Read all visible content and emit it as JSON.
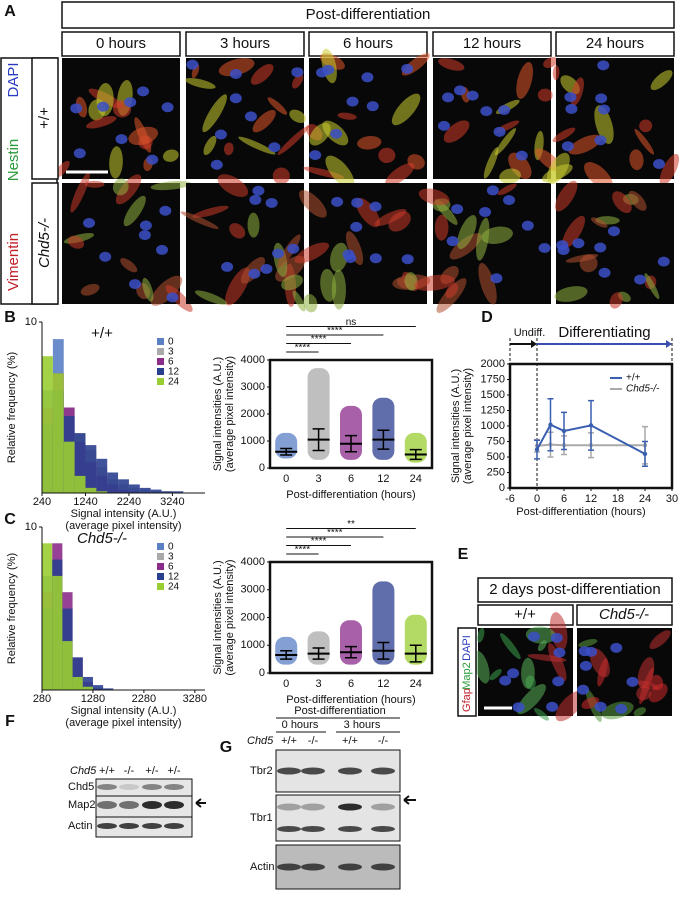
{
  "panel_a": {
    "label": "A",
    "header": "Post-differentiation",
    "times": [
      "0 hours",
      "3 hours",
      "6 hours",
      "12 hours",
      "24 hours"
    ],
    "stains": [
      "DAPI",
      "Nestin",
      "Vimentin"
    ],
    "genotypes": [
      "+/+",
      "Chd5-/-"
    ]
  },
  "chart_data": [
    {
      "type": "histogram",
      "panel": "B",
      "title": "+/+",
      "ylabel": "Relative frequency (%)",
      "xlabel": [
        "Signal intensity (A.U.)",
        "(average pixel intensity)"
      ],
      "bins": [
        240,
        490,
        740,
        990,
        1240,
        1490,
        1740,
        1990,
        2240,
        2490,
        2740,
        2990,
        3240,
        3490,
        3740,
        3990
      ],
      "xlim": [
        240,
        3990
      ],
      "xticks": [
        240,
        1240,
        2240,
        3240
      ],
      "ylim": [
        0,
        10
      ],
      "yticks": [
        10
      ],
      "series": [
        {
          "name": "0",
          "color": "#5b7fc4",
          "values": [
            6,
            9,
            4,
            2,
            1,
            0.4,
            0.2,
            0.1,
            0,
            0,
            0,
            0,
            0,
            0,
            0
          ]
        },
        {
          "name": "3",
          "color": "#a9a9a9",
          "values": [
            4,
            6,
            5,
            3.5,
            2.5,
            1.5,
            0.8,
            0.5,
            0.3,
            0.2,
            0.1,
            0.1,
            0,
            0,
            0
          ]
        },
        {
          "name": "6",
          "color": "#8b2c8b",
          "values": [
            5,
            7,
            5,
            3,
            1.8,
            1,
            0.5,
            0.2,
            0.1,
            0,
            0,
            0,
            0,
            0,
            0
          ]
        },
        {
          "name": "12",
          "color": "#2b3f8f",
          "values": [
            4,
            6,
            4.5,
            3.5,
            2.8,
            2,
            1.2,
            0.8,
            0.5,
            0.3,
            0.2,
            0.1,
            0.1,
            0,
            0
          ]
        },
        {
          "name": "24",
          "color": "#9acd32",
          "values": [
            8,
            7,
            3,
            1,
            0.3,
            0.1,
            0,
            0,
            0,
            0,
            0,
            0,
            0,
            0,
            0
          ]
        }
      ]
    },
    {
      "type": "dotplot",
      "ylabel": [
        "Signal intensities (A.U.)",
        "(average pixel intensity)"
      ],
      "xlabel": "Post-differentiation (hours)",
      "categories": [
        "0",
        "3",
        "6",
        "12",
        "24"
      ],
      "colors": [
        "#5b7fc4",
        "#a9a9a9",
        "#8b2c8b",
        "#2b3f8f",
        "#9acd32"
      ],
      "means": [
        600,
        1050,
        900,
        1050,
        500
      ],
      "errors": [
        120,
        400,
        300,
        350,
        180
      ],
      "mins": [
        350,
        300,
        300,
        300,
        200
      ],
      "maxs": [
        1300,
        3700,
        2300,
        2600,
        1300
      ],
      "ylim": [
        0,
        4000
      ],
      "yticks": [
        0,
        1000,
        2000,
        3000,
        4000
      ],
      "annotations": [
        "****",
        "****",
        "****",
        "ns"
      ]
    },
    {
      "type": "histogram",
      "panel": "C",
      "title": "Chd5-/-",
      "ylabel": "Relative frequency (%)",
      "xlabel": [
        "Signal intensity (A.U.)",
        "(average pixel intensity)"
      ],
      "bins": [
        280,
        480,
        680,
        880,
        1080,
        1280,
        1480,
        1680,
        1880,
        2080,
        2280,
        2480,
        2680,
        2880,
        3080,
        3280,
        3480
      ],
      "xlim": [
        280,
        3480
      ],
      "xticks": [
        280,
        1280,
        2280,
        3280
      ],
      "ylim": [
        0,
        10
      ],
      "yticks": [
        10
      ],
      "series": [
        {
          "name": "0",
          "color": "#5b7fc4",
          "values": [
            7,
            8,
            3,
            0.8,
            0.2,
            0,
            0,
            0,
            0,
            0,
            0,
            0,
            0,
            0,
            0,
            0
          ]
        },
        {
          "name": "3",
          "color": "#a9a9a9",
          "values": [
            5,
            8,
            5,
            1.5,
            0.4,
            0.1,
            0,
            0,
            0,
            0,
            0,
            0,
            0,
            0,
            0,
            0
          ]
        },
        {
          "name": "6",
          "color": "#8b2c8b",
          "values": [
            6,
            9,
            6,
            2,
            0.5,
            0.1,
            0,
            0,
            0,
            0,
            0,
            0,
            0,
            0,
            0,
            0
          ]
        },
        {
          "name": "12",
          "color": "#2b3f8f",
          "values": [
            5,
            8,
            5,
            2,
            0.8,
            0.3,
            0.1,
            0,
            0,
            0,
            0,
            0,
            0,
            0,
            0,
            0
          ]
        },
        {
          "name": "24",
          "color": "#9acd32",
          "values": [
            9,
            7,
            3,
            0.8,
            0.2,
            0,
            0,
            0,
            0,
            0,
            0,
            0,
            0,
            0,
            0,
            0
          ]
        }
      ]
    },
    {
      "type": "dotplot",
      "ylabel": [
        "Signal intensities (A.U.)",
        "(average pixel intensity)"
      ],
      "xlabel": "Post-differentiation (hours)",
      "categories": [
        "0",
        "3",
        "6",
        "12",
        "24"
      ],
      "colors": [
        "#5b7fc4",
        "#a9a9a9",
        "#8b2c8b",
        "#2b3f8f",
        "#9acd32"
      ],
      "means": [
        650,
        700,
        750,
        800,
        700
      ],
      "errors": [
        150,
        200,
        200,
        300,
        300
      ],
      "mins": [
        300,
        300,
        300,
        300,
        300
      ],
      "maxs": [
        1300,
        1500,
        1900,
        3300,
        2100
      ],
      "ylim": [
        0,
        4000
      ],
      "yticks": [
        0,
        1000,
        2000,
        3000,
        4000
      ],
      "annotations": [
        "****",
        "****",
        "****",
        "**"
      ]
    },
    {
      "type": "line",
      "panel": "D",
      "ylabel": [
        "Signal intensities (A.U.)",
        "(average pixel intensity)"
      ],
      "xlabel": "Post-differentiation (hours)",
      "phases": [
        "Undiff.",
        "Differentiating"
      ],
      "x": [
        0,
        3,
        6,
        12,
        24
      ],
      "xlim": [
        -6,
        30
      ],
      "xticks": [
        -6,
        0,
        6,
        12,
        18,
        24,
        30
      ],
      "ylim": [
        0,
        2000
      ],
      "yticks": [
        0,
        250,
        500,
        750,
        1000,
        1250,
        1500,
        1750,
        2000
      ],
      "series": [
        {
          "name": "+/+",
          "color": "#3a5fb0",
          "values": [
            620,
            1020,
            920,
            1010,
            550
          ],
          "errors": [
            150,
            420,
            300,
            400,
            200
          ]
        },
        {
          "name": "Chd5-/-",
          "color": "#a9a9a9",
          "values": [
            680,
            700,
            690,
            690,
            690
          ],
          "errors": [
            100,
            200,
            150,
            200,
            300
          ]
        }
      ]
    }
  ],
  "panel_e": {
    "label": "E",
    "header": "2 days post-differentiation",
    "genotypes": [
      "+/+",
      "Chd5-/-"
    ],
    "stains": [
      "Gfap",
      "Map2",
      "DAPI"
    ]
  },
  "panel_f": {
    "label": "F",
    "gene": "Chd5",
    "lanes": [
      "+/+",
      "-/-",
      "+/-",
      "+/-"
    ],
    "rows": [
      "Chd5",
      "Map2",
      "Actin"
    ]
  },
  "panel_g": {
    "label": "G",
    "header": "Post-differentiation",
    "times": [
      "0 hours",
      "3 hours"
    ],
    "gene": "Chd5",
    "lanes": [
      "+/+",
      "-/-",
      "+/+",
      "-/-"
    ],
    "rows": [
      "Tbr2",
      "Tbr1",
      "Actin"
    ]
  }
}
